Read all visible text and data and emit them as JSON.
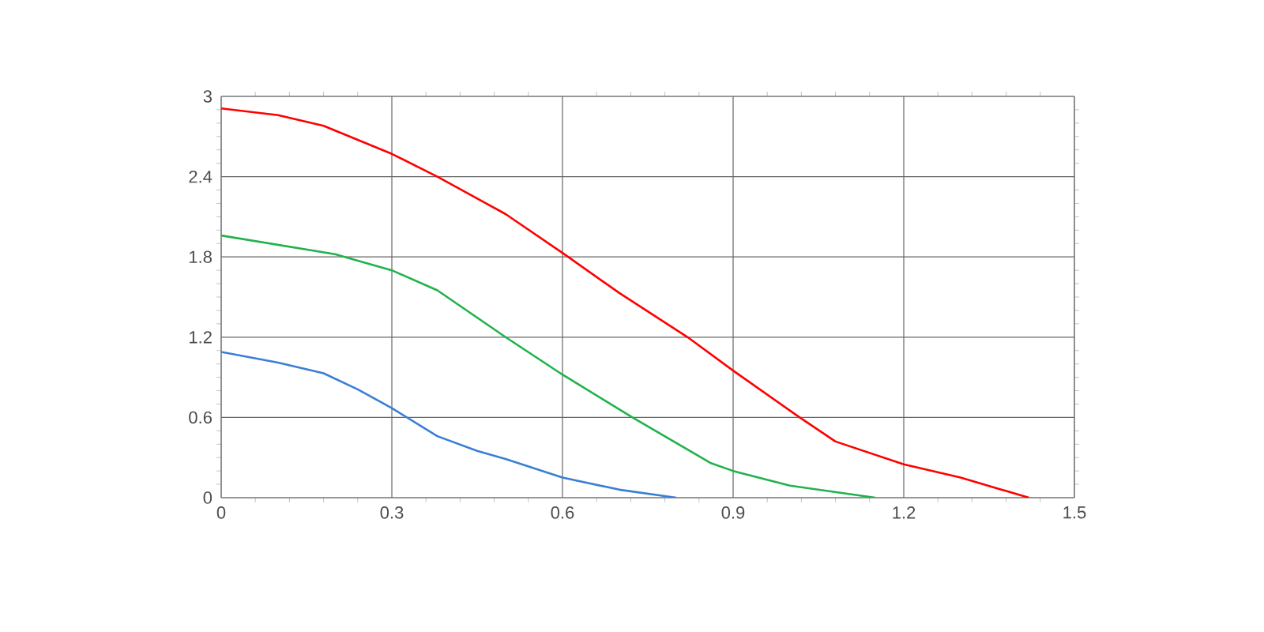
{
  "chart_data": {
    "type": "line",
    "xlim": [
      0,
      1.5
    ],
    "ylim": [
      0,
      3
    ],
    "xticks": [
      0,
      0.3,
      0.6,
      0.9,
      1.2,
      1.5
    ],
    "yticks": [
      0,
      0.6,
      1.2,
      1.8,
      2.4,
      3
    ],
    "grid": true,
    "marker": "none",
    "line_style": "solid",
    "series": [
      {
        "color": "#3a7fd5",
        "x": [
          0,
          0.1,
          0.18,
          0.24,
          0.3,
          0.38,
          0.45,
          0.5,
          0.6,
          0.7,
          0.8
        ],
        "values": [
          1.09,
          1.01,
          0.93,
          0.81,
          0.67,
          0.46,
          0.35,
          0.29,
          0.15,
          0.06,
          0
        ]
      },
      {
        "color": "#21b24b",
        "x": [
          0,
          0.1,
          0.2,
          0.3,
          0.38,
          0.5,
          0.6,
          0.723,
          0.86,
          0.9,
          1.0,
          1.15
        ],
        "values": [
          1.96,
          1.89,
          1.82,
          1.7,
          1.55,
          1.2,
          0.92,
          0.6,
          0.26,
          0.2,
          0.09,
          0
        ]
      },
      {
        "color": "#ff0000",
        "x": [
          0,
          0.1,
          0.18,
          0.3,
          0.38,
          0.5,
          0.6,
          0.7,
          0.82,
          0.9,
          1.017,
          1.08,
          1.2,
          1.3,
          1.42
        ],
        "values": [
          2.91,
          2.86,
          2.78,
          2.57,
          2.4,
          2.12,
          1.83,
          1.53,
          1.2,
          0.95,
          0.6,
          0.42,
          0.25,
          0.15,
          0
        ]
      }
    ]
  }
}
